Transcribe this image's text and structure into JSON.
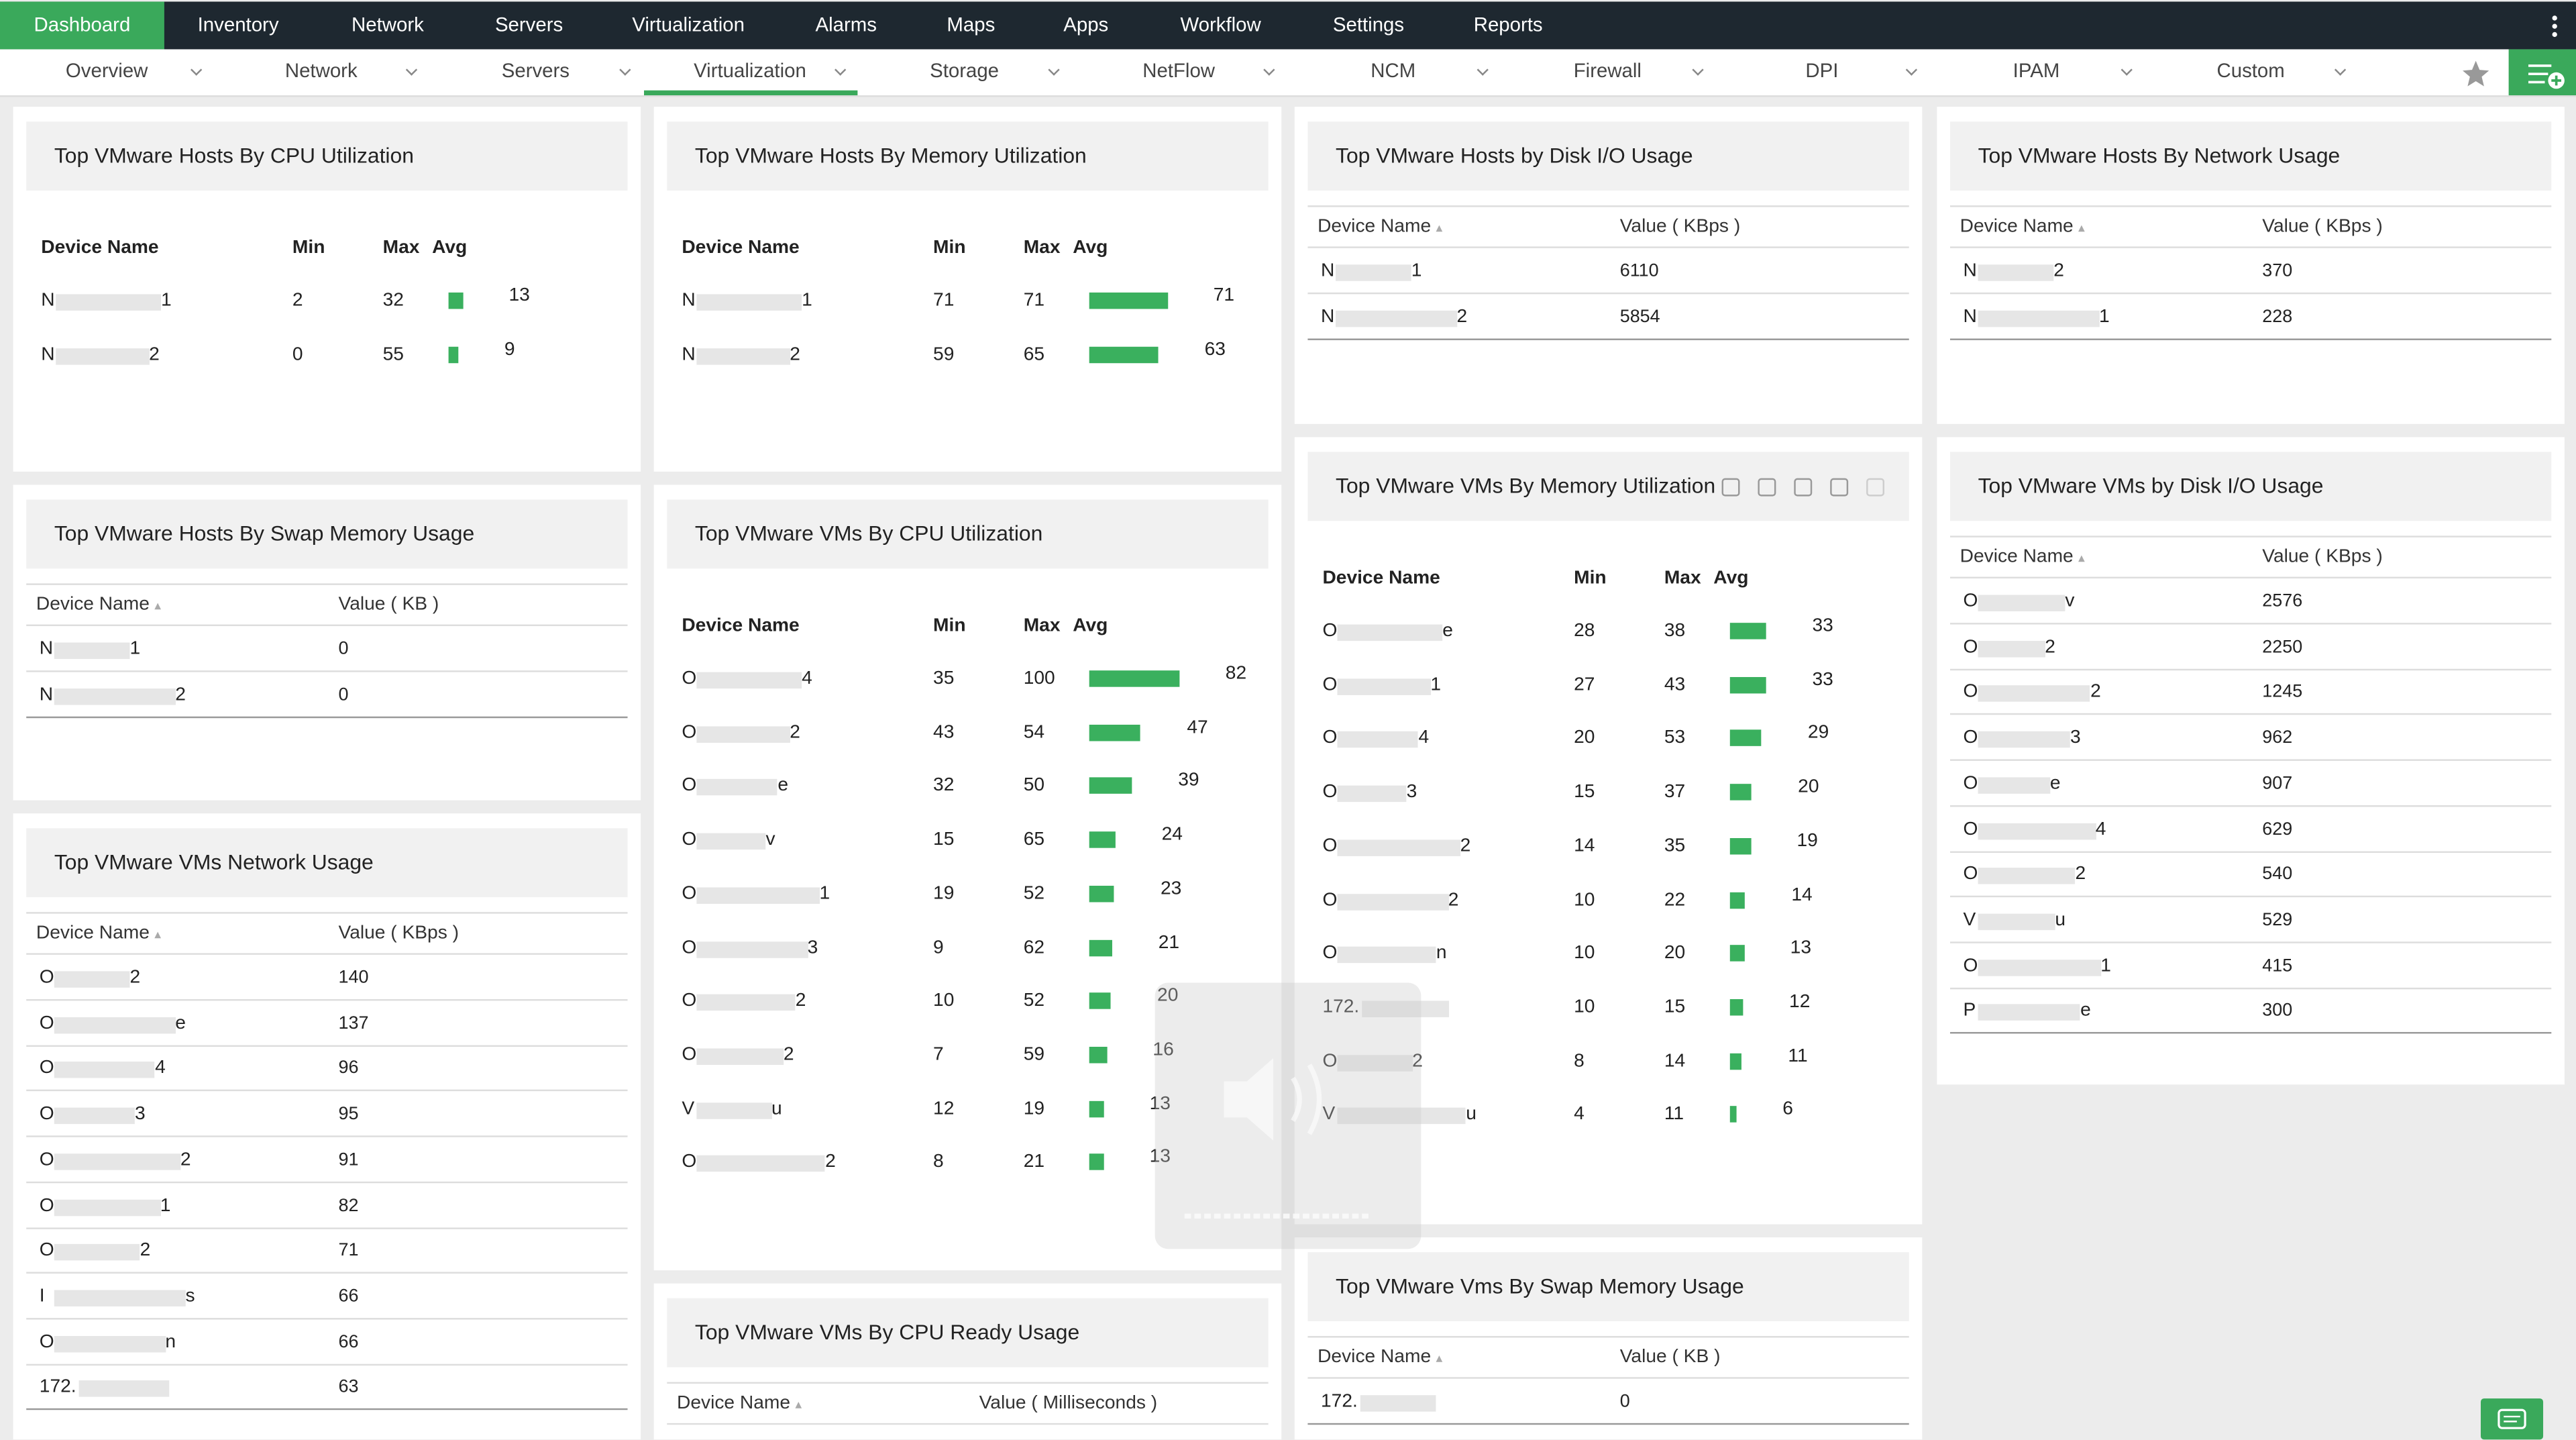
{
  "nav": [
    "Dashboard",
    "Inventory",
    "Network",
    "Servers",
    "Virtualization",
    "Alarms",
    "Maps",
    "Apps",
    "Workflow",
    "Settings",
    "Reports"
  ],
  "subnav": [
    "Overview",
    "Network",
    "Servers",
    "Virtualization",
    "Storage",
    "NetFlow",
    "NCM",
    "Firewall",
    "DPI",
    "IPAM",
    "Custom"
  ],
  "widgets": [
    {
      "title": "Top VMware Hosts By CPU Utilization",
      "columns": [
        "Device Name",
        "Min",
        "Max",
        "Avg"
      ],
      "rows": [
        {
          "name": [
            "N",
            "1"
          ],
          "min": 2,
          "max": 32,
          "avg": 13
        },
        {
          "name": [
            "N",
            "2"
          ],
          "min": 0,
          "max": 55,
          "avg": 9
        }
      ]
    },
    {
      "title": "Top VMware Hosts By Swap Memory Usage",
      "columns": [
        "Device Name",
        "Value ( KB )"
      ],
      "rows": [
        {
          "name": [
            "N",
            "1"
          ],
          "value": 0
        },
        {
          "name": [
            "N",
            "2"
          ],
          "value": 0
        }
      ]
    },
    {
      "title": "Top VMware VMs Network Usage",
      "columns": [
        "Device Name",
        "Value ( KBps )"
      ],
      "rows": [
        {
          "name": [
            "O",
            "2"
          ],
          "value": 140
        },
        {
          "name": [
            "O",
            "e"
          ],
          "value": 137
        },
        {
          "name": [
            "O",
            "4"
          ],
          "value": 96
        },
        {
          "name": [
            "O",
            "3"
          ],
          "value": 95
        },
        {
          "name": [
            "O",
            "2"
          ],
          "value": 91
        },
        {
          "name": [
            "O",
            "1"
          ],
          "value": 82
        },
        {
          "name": [
            "O",
            "2"
          ],
          "value": 71
        },
        {
          "name": [
            "I",
            "s"
          ],
          "value": 66
        },
        {
          "name": [
            "O",
            "n"
          ],
          "value": 66
        },
        {
          "name": [
            "172.",
            ""
          ],
          "value": 63
        }
      ]
    },
    {
      "title": "Top VMware Hosts By Memory Utilization",
      "columns": [
        "Device Name",
        "Min",
        "Max",
        "Avg"
      ],
      "rows": [
        {
          "name": [
            "N",
            "1"
          ],
          "min": 71,
          "max": 71,
          "avg": 71
        },
        {
          "name": [
            "N",
            "2"
          ],
          "min": 59,
          "max": 65,
          "avg": 63
        }
      ]
    },
    {
      "title": "Top VMware VMs By CPU Utilization",
      "columns": [
        "Device Name",
        "Min",
        "Max",
        "Avg"
      ],
      "rows": [
        {
          "name": [
            "O",
            "4"
          ],
          "min": 35,
          "max": 100,
          "avg": 82
        },
        {
          "name": [
            "O",
            "2"
          ],
          "min": 43,
          "max": 54,
          "avg": 47
        },
        {
          "name": [
            "O",
            "e"
          ],
          "min": 32,
          "max": 50,
          "avg": 39
        },
        {
          "name": [
            "O",
            "v"
          ],
          "min": 15,
          "max": 65,
          "avg": 24
        },
        {
          "name": [
            "O",
            "1"
          ],
          "min": 19,
          "max": 52,
          "avg": 23
        },
        {
          "name": [
            "O",
            "3"
          ],
          "min": 9,
          "max": 62,
          "avg": 21
        },
        {
          "name": [
            "O",
            "2"
          ],
          "min": 10,
          "max": 52,
          "avg": 20
        },
        {
          "name": [
            "O",
            "2"
          ],
          "min": 7,
          "max": 59,
          "avg": 16
        },
        {
          "name": [
            "V",
            "u"
          ],
          "min": 12,
          "max": 19,
          "avg": 13
        },
        {
          "name": [
            "O",
            "2"
          ],
          "min": 8,
          "max": 21,
          "avg": 13
        }
      ]
    },
    {
      "title": "Top VMware VMs By CPU Ready Usage",
      "columns": [
        "Device Name",
        "Value ( Milliseconds )"
      ],
      "rows": []
    },
    {
      "title": "Top VMware Hosts by Disk I/O Usage",
      "columns": [
        "Device Name",
        "Value ( KBps )"
      ],
      "rows": [
        {
          "name": [
            "N",
            "1"
          ],
          "value": 6110
        },
        {
          "name": [
            "N",
            "2"
          ],
          "value": 5854
        }
      ]
    },
    {
      "title": "Top VMware VMs By Memory Utilization",
      "columns": [
        "Device Name",
        "Min",
        "Max",
        "Avg"
      ],
      "rows": [
        {
          "name": [
            "O",
            "e"
          ],
          "min": 28,
          "max": 38,
          "avg": 33
        },
        {
          "name": [
            "O",
            "1"
          ],
          "min": 27,
          "max": 43,
          "avg": 33
        },
        {
          "name": [
            "O",
            "4"
          ],
          "min": 20,
          "max": 53,
          "avg": 29
        },
        {
          "name": [
            "O",
            "3"
          ],
          "min": 15,
          "max": 37,
          "avg": 20
        },
        {
          "name": [
            "O",
            "2"
          ],
          "min": 14,
          "max": 35,
          "avg": 19
        },
        {
          "name": [
            "O",
            "2"
          ],
          "min": 10,
          "max": 22,
          "avg": 14
        },
        {
          "name": [
            "O",
            "n"
          ],
          "min": 10,
          "max": 20,
          "avg": 13
        },
        {
          "name": [
            "172.",
            ""
          ],
          "min": 10,
          "max": 15,
          "avg": 12
        },
        {
          "name": [
            "O",
            "2"
          ],
          "min": 8,
          "max": 14,
          "avg": 11
        },
        {
          "name": [
            "V",
            "u"
          ],
          "min": 4,
          "max": 11,
          "avg": 6
        }
      ]
    },
    {
      "title": "Top VMware Vms By Swap Memory Usage",
      "columns": [
        "Device Name",
        "Value ( KB )"
      ],
      "rows": [
        {
          "name": [
            "172.",
            ""
          ],
          "value": 0
        }
      ]
    },
    {
      "title": "Top VMware Hosts By Network Usage",
      "columns": [
        "Device Name",
        "Value ( KBps )"
      ],
      "rows": [
        {
          "name": [
            "N",
            "2"
          ],
          "value": 370
        },
        {
          "name": [
            "N",
            "1"
          ],
          "value": 228
        }
      ]
    },
    {
      "title": "Top VMware VMs by Disk I/O Usage",
      "columns": [
        "Device Name",
        "Value ( KBps )"
      ],
      "rows": [
        {
          "name": [
            "O",
            "v"
          ],
          "value": 2576
        },
        {
          "name": [
            "O",
            "2"
          ],
          "value": 2250
        },
        {
          "name": [
            "O",
            "2"
          ],
          "value": 1245
        },
        {
          "name": [
            "O",
            "3"
          ],
          "value": 962
        },
        {
          "name": [
            "O",
            "e"
          ],
          "value": 907
        },
        {
          "name": [
            "O",
            "4"
          ],
          "value": 629
        },
        {
          "name": [
            "O",
            "2"
          ],
          "value": 540
        },
        {
          "name": [
            "V",
            "u"
          ],
          "value": 529
        },
        {
          "name": [
            "O",
            "1"
          ],
          "value": 415
        },
        {
          "name": [
            "P",
            "e"
          ],
          "value": 300
        }
      ]
    }
  ]
}
